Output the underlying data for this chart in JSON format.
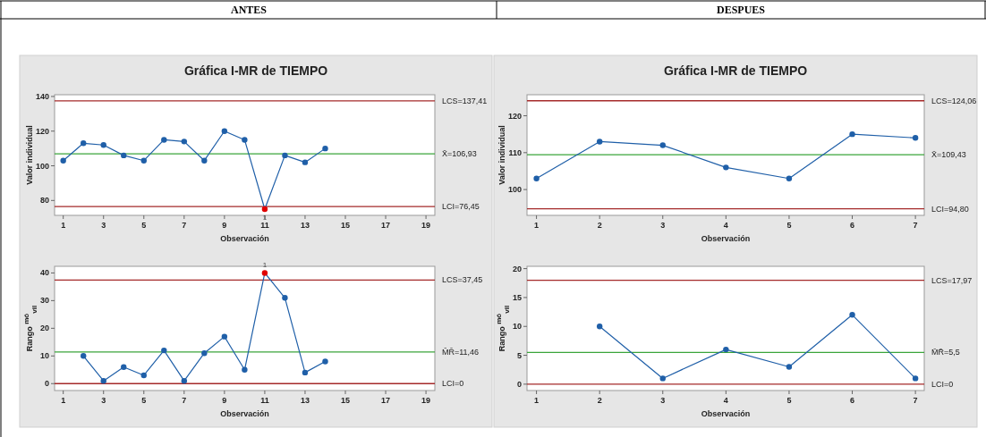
{
  "chart_data": [
    {
      "type": "line",
      "title": "Gráfica I-MR de TIEMPO",
      "xlabel": "Observación",
      "ylabel": "Valor individual",
      "annotations": [
        "ANTES",
        {
          "text": "1",
          "x": 11,
          "y": 75
        }
      ],
      "x": [
        1,
        2,
        3,
        4,
        5,
        6,
        7,
        8,
        9,
        10,
        11,
        12,
        13,
        14
      ],
      "series": [
        {
          "color": "#1f5fa8",
          "values": [
            103,
            113,
            112,
            106,
            103,
            115,
            114,
            103,
            120,
            115,
            75,
            106,
            102,
            110
          ],
          "colors": [
            "#1f5fa8",
            "#1f5fa8",
            "#1f5fa8",
            "#1f5fa8",
            "#1f5fa8",
            "#1f5fa8",
            "#1f5fa8",
            "#1f5fa8",
            "#1f5fa8",
            "#1f5fa8",
            "#e00000",
            "#1f5fa8",
            "#1f5fa8",
            "#1f5fa8"
          ]
        }
      ],
      "xlim": [
        0.57,
        19.44
      ],
      "xticks": [
        1,
        3,
        5,
        7,
        9,
        11,
        13,
        15,
        17,
        19
      ],
      "ylim": [
        71.4,
        141
      ],
      "yticks": [
        80,
        100,
        120,
        140
      ],
      "ref_lines": [
        {
          "axis": "y",
          "value": 137.41,
          "label": "LCS=137,41",
          "color": "#a52a2a"
        },
        {
          "axis": "y",
          "value": 106.93,
          "label": "X̄=106,93",
          "color": "#3aa53a"
        },
        {
          "axis": "y",
          "value": 76.45,
          "label": "LCI=76,45",
          "color": "#a52a2a"
        }
      ],
      "grid": false,
      "marker": "circle",
      "line_style": "solid"
    },
    {
      "type": "line",
      "title": "Gráfica I-MR de TIEMPO",
      "xlabel": "Observación",
      "ylabel": "Valor individual",
      "annotations": [
        "DESPUES"
      ],
      "x": [
        1,
        2,
        3,
        4,
        5,
        6,
        7
      ],
      "series": [
        {
          "color": "#1f5fa8",
          "values": [
            103,
            113,
            112,
            106,
            103,
            115,
            114
          ]
        }
      ],
      "xlim": [
        0.85,
        7.14
      ],
      "xticks": [
        1,
        2,
        3,
        4,
        5,
        6,
        7
      ],
      "ylim": [
        93,
        125.7
      ],
      "yticks": [
        100,
        110,
        120
      ],
      "ref_lines": [
        {
          "axis": "y",
          "value": 124.06,
          "label": "LCS=124,06",
          "color": "#a52a2a"
        },
        {
          "axis": "y",
          "value": 109.43,
          "label": "X̄=109,43",
          "color": "#3aa53a"
        },
        {
          "axis": "y",
          "value": 94.8,
          "label": "LCI=94,80",
          "color": "#a52a2a"
        }
      ],
      "grid": false,
      "marker": "circle",
      "line_style": "solid"
    },
    {
      "type": "line",
      "xlabel": "Observación",
      "ylabel": "Rango $^{mó}$$_{vil}$",
      "annotations": [
        {
          "text": "1",
          "x": 11,
          "y": 40
        }
      ],
      "series": [
        {
          "color": "#1f5fa8",
          "x": [
            2,
            3,
            4,
            5,
            6,
            7,
            8,
            9,
            10,
            11,
            12,
            13,
            14
          ],
          "values": [
            10,
            1,
            6,
            3,
            12,
            1,
            11,
            17,
            5,
            40,
            31,
            4,
            8
          ],
          "colors": [
            "#1f5fa8",
            "#1f5fa8",
            "#1f5fa8",
            "#1f5fa8",
            "#1f5fa8",
            "#1f5fa8",
            "#1f5fa8",
            "#1f5fa8",
            "#1f5fa8",
            "#e00000",
            "#1f5fa8",
            "#1f5fa8",
            "#1f5fa8"
          ]
        }
      ],
      "xlim": [
        0.57,
        19.44
      ],
      "xticks": [
        1,
        3,
        5,
        7,
        9,
        11,
        13,
        15,
        17,
        19
      ],
      "ylim": [
        -2.5,
        42.4
      ],
      "yticks": [
        0,
        10,
        20,
        30,
        40
      ],
      "ref_lines": [
        {
          "axis": "y",
          "value": 37.45,
          "label": "LCS=37,45",
          "color": "#a52a2a"
        },
        {
          "axis": "y",
          "value": 11.46,
          "label": "M̄R̄=11,46",
          "color": "#3aa53a"
        },
        {
          "axis": "y",
          "value": 0,
          "label": "LCI=0",
          "color": "#a52a2a"
        }
      ],
      "grid": false,
      "marker": "circle",
      "line_style": "solid"
    },
    {
      "type": "line",
      "xlabel": "Observación",
      "ylabel": "Rango $^{mó}$$_{vil}$",
      "series": [
        {
          "color": "#1f5fa8",
          "x": [
            2,
            3,
            4,
            5,
            6,
            7
          ],
          "values": [
            10,
            1,
            6,
            3,
            12,
            1
          ]
        }
      ],
      "xlim": [
        0.85,
        7.14
      ],
      "xticks": [
        1,
        2,
        3,
        4,
        5,
        6,
        7
      ],
      "ylim": [
        -1.1,
        20.4
      ],
      "yticks": [
        0,
        5,
        10,
        15,
        20
      ],
      "ref_lines": [
        {
          "axis": "y",
          "value": 17.97,
          "label": "LCS=17,97",
          "color": "#a52a2a"
        },
        {
          "axis": "y",
          "value": 5.5,
          "label": "M̄R̄=5,5",
          "color": "#3aa53a"
        },
        {
          "axis": "y",
          "value": 0,
          "label": "LCI=0",
          "color": "#a52a2a"
        }
      ],
      "grid": false,
      "marker": "circle",
      "line_style": "solid"
    }
  ]
}
